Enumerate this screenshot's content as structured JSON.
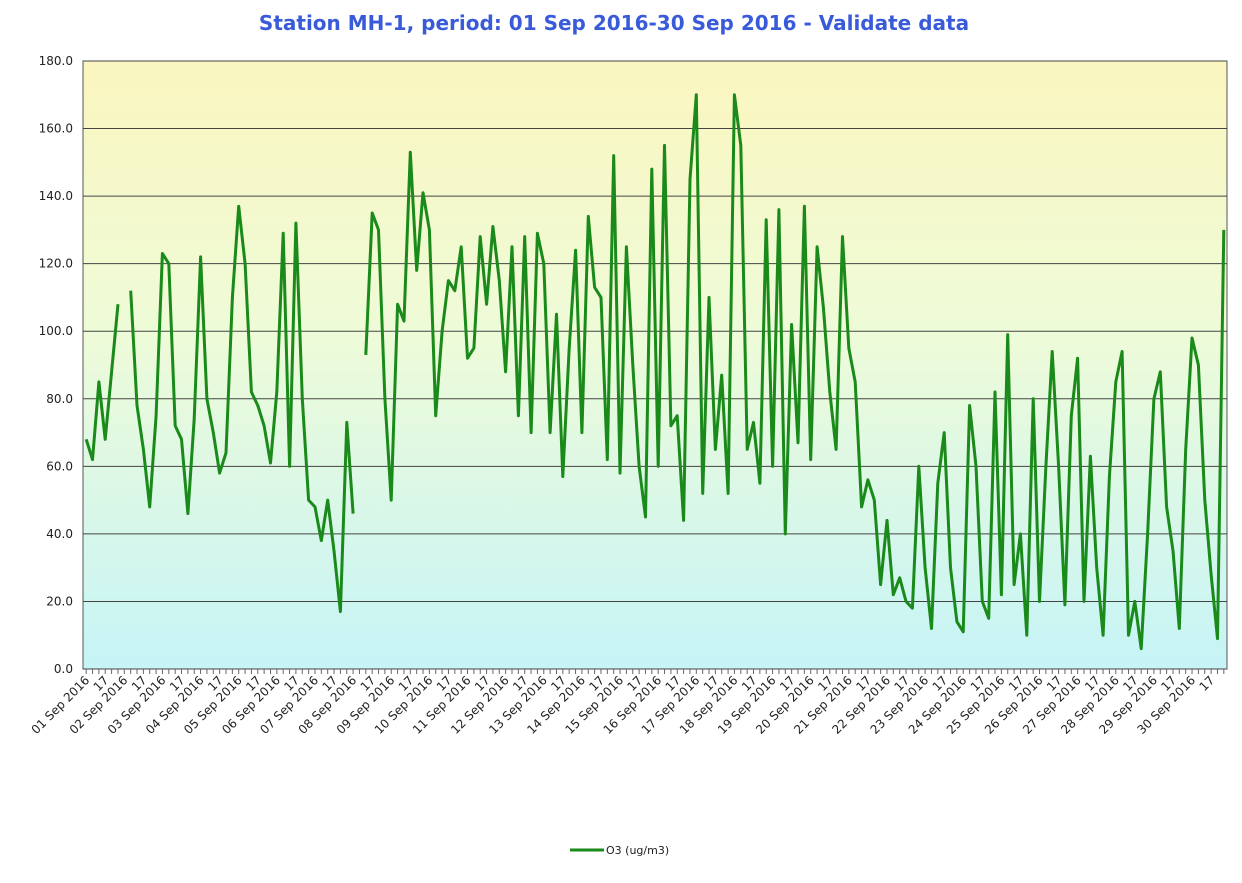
{
  "chart_data": {
    "type": "line",
    "title": "Station MH-1, period: 01 Sep 2016-30 Sep 2016 - Validate data",
    "categories": [
      "01 Sep 2016",
      null,
      null,
      "17",
      null,
      null,
      "02 Sep 2016",
      null,
      null,
      "17",
      null,
      null,
      "03 Sep 2016",
      null,
      null,
      "17",
      null,
      null,
      "04 Sep 2016",
      null,
      null,
      "17",
      null,
      null,
      "05 Sep 2016",
      null,
      null,
      "17",
      null,
      null,
      "06 Sep 2016",
      null,
      null,
      "17",
      null,
      null,
      "07 Sep 2016",
      null,
      null,
      "17",
      null,
      null,
      "08 Sep 2016",
      null,
      null,
      "17",
      null,
      null,
      "09 Sep 2016",
      null,
      null,
      "17",
      null,
      null,
      "10 Sep 2016",
      null,
      null,
      "17",
      null,
      null,
      "11 Sep 2016",
      null,
      null,
      "17",
      null,
      null,
      "12 Sep 2016",
      null,
      null,
      "17",
      null,
      null,
      "13 Sep 2016",
      null,
      null,
      "17",
      null,
      null,
      "14 Sep 2016",
      null,
      null,
      "17",
      null,
      null,
      "15 Sep 2016",
      null,
      null,
      "17",
      null,
      null,
      "16 Sep 2016",
      null,
      null,
      "17",
      null,
      null,
      "17 Sep 2016",
      null,
      null,
      "17",
      null,
      null,
      "18 Sep 2016",
      null,
      null,
      "17",
      null,
      null,
      "19 Sep 2016",
      null,
      null,
      "17",
      null,
      null,
      "20 Sep 2016",
      null,
      null,
      "17",
      null,
      null,
      "21 Sep 2016",
      null,
      null,
      "17",
      null,
      null,
      "22 Sep 2016",
      null,
      null,
      "17",
      null,
      null,
      "23 Sep 2016",
      null,
      null,
      "17",
      null,
      null,
      "24 Sep 2016",
      null,
      null,
      "17",
      null,
      null,
      "25 Sep 2016",
      null,
      null,
      "17",
      null,
      null,
      "26 Sep 2016",
      null,
      null,
      "17",
      null,
      null,
      "27 Sep 2016",
      null,
      null,
      "17",
      null,
      null,
      "28 Sep 2016",
      null,
      null,
      "17",
      null,
      null,
      "29 Sep 2016",
      null,
      null,
      "17",
      null,
      null,
      "30 Sep 2016",
      null,
      null,
      "17",
      null,
      null
    ],
    "series": [
      {
        "name": "O3 (ug/m3)",
        "color": "#1a8a1a",
        "values": [
          68,
          62,
          85,
          68,
          88,
          108,
          null,
          112,
          78,
          65,
          48,
          75,
          123,
          120,
          72,
          68,
          46,
          74,
          122,
          80,
          70,
          58,
          64,
          110,
          137,
          120,
          82,
          78,
          72,
          61,
          82,
          129,
          60,
          132,
          80,
          50,
          48,
          38,
          50,
          35,
          17,
          73,
          46,
          null,
          93,
          135,
          130,
          80,
          50,
          108,
          103,
          153,
          118,
          141,
          130,
          75,
          100,
          115,
          112,
          125,
          92,
          95,
          128,
          108,
          131,
          115,
          88,
          125,
          75,
          128,
          70,
          129,
          120,
          70,
          105,
          57,
          95,
          124,
          70,
          134,
          113,
          110,
          62,
          152,
          58,
          125,
          90,
          60,
          45,
          148,
          60,
          155,
          72,
          75,
          44,
          145,
          170,
          52,
          110,
          65,
          87,
          52,
          170,
          155,
          65,
          73,
          55,
          133,
          60,
          136,
          40,
          102,
          67,
          137,
          62,
          125,
          107,
          82,
          65,
          128,
          95,
          85,
          48,
          56,
          50,
          25,
          44,
          22,
          27,
          20,
          18,
          60,
          30,
          12,
          55,
          70,
          30,
          14,
          11,
          78,
          60,
          20,
          15,
          82,
          22,
          99,
          25,
          40,
          10,
          80,
          20,
          60,
          94,
          60,
          19,
          75,
          92,
          20,
          63,
          30,
          10,
          57,
          85,
          94,
          10,
          20,
          6,
          40,
          80,
          88,
          48,
          35,
          12,
          65,
          98,
          90,
          50,
          28,
          9,
          130
        ]
      }
    ],
    "ylim": [
      0,
      180
    ],
    "yticks": [
      {
        "value": 0,
        "label": "0.0"
      },
      {
        "value": 20,
        "label": "20.0"
      },
      {
        "value": 40,
        "label": "40.0"
      },
      {
        "value": 60,
        "label": "60.0"
      },
      {
        "value": 80,
        "label": "80.0"
      },
      {
        "value": 100,
        "label": "100.0"
      },
      {
        "value": 120,
        "label": "120.0"
      },
      {
        "value": 140,
        "label": "140.0"
      },
      {
        "value": 160,
        "label": "160.0"
      },
      {
        "value": 180,
        "label": "180.0"
      }
    ],
    "grid": true
  }
}
